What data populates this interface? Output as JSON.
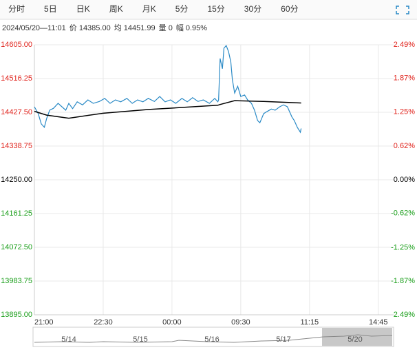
{
  "tabs": [
    "分时",
    "5日",
    "日K",
    "周K",
    "月K",
    "5分",
    "15分",
    "30分",
    "60分"
  ],
  "info": [
    "2024/05/20—11:01",
    "价 14385.00",
    "均 14451.99",
    "量 0",
    "幅 0.95%"
  ],
  "chart_data": {
    "type": "line",
    "x": [
      0,
      5,
      9,
      13,
      16,
      20,
      25,
      31,
      36,
      41,
      45,
      50,
      56,
      63,
      70,
      77,
      85,
      92,
      99,
      106,
      113,
      121,
      128,
      135,
      142,
      149,
      157,
      164,
      171,
      178,
      185,
      193,
      200,
      207,
      214,
      221,
      229,
      236,
      240,
      241,
      243,
      246,
      248,
      251,
      254,
      257,
      259,
      262,
      266,
      270,
      275,
      279,
      284,
      288,
      292,
      295,
      300,
      304,
      310,
      315,
      321,
      326,
      331,
      337,
      340,
      344,
      348,
      349
    ],
    "series": [
      {
        "color": "#2a8ac6",
        "values": [
          14442,
          14424,
          14397,
          14388,
          14411,
          14433,
          14438,
          14451,
          14442,
          14433,
          14451,
          14437,
          14455,
          14447,
          14460,
          14451,
          14456,
          14464,
          14451,
          14460,
          14455,
          14464,
          14451,
          14460,
          14455,
          14464,
          14456,
          14469,
          14455,
          14460,
          14451,
          14464,
          14455,
          14466,
          14456,
          14460,
          14451,
          14464,
          14455,
          14460,
          14569,
          14542,
          14596,
          14603,
          14587,
          14560,
          14514,
          14478,
          14496,
          14469,
          14473,
          14460,
          14451,
          14433,
          14406,
          14400,
          14424,
          14429,
          14436,
          14433,
          14442,
          14447,
          14442,
          14415,
          14406,
          14388,
          14375,
          14385
        ]
      },
      {
        "color": "#000000",
        "x": [
          0,
          16,
          45,
          90,
          150,
          200,
          240,
          243,
          262,
          300,
          349
        ],
        "values": [
          14430,
          14420,
          14412,
          14425,
          14435,
          14441,
          14446,
          14448,
          14458,
          14456,
          14452
        ]
      }
    ],
    "xlim": [
      0,
      470
    ],
    "xticks": [
      {
        "value": 0,
        "label": "21:00"
      },
      {
        "value": 90,
        "label": "22:30"
      },
      {
        "value": 180,
        "label": "00:00"
      },
      {
        "value": 270,
        "label": "09:30"
      },
      {
        "value": 360,
        "label": "11:15"
      },
      {
        "value": 450,
        "label": "14:45"
      }
    ],
    "ylim": [
      13895,
      14605
    ],
    "yticks": [
      {
        "value": 14605,
        "label": "14605.00"
      },
      {
        "value": 14516.25,
        "label": "14516.25"
      },
      {
        "value": 14427.5,
        "label": "14427.50"
      },
      {
        "value": 14338.75,
        "label": "14338.75"
      },
      {
        "value": 14250,
        "label": "14250.00"
      },
      {
        "value": 14161.25,
        "label": "14161.25"
      },
      {
        "value": 14072.5,
        "label": "14072.50"
      },
      {
        "value": 13983.75,
        "label": "13983.75"
      },
      {
        "value": 13895,
        "label": "13895.00"
      }
    ],
    "y2lim": [
      -2.49,
      2.49
    ],
    "y2ticks": [
      {
        "value": 2.49,
        "label": "2.49%"
      },
      {
        "value": 1.87,
        "label": "1.87%"
      },
      {
        "value": 1.25,
        "label": "1.25%"
      },
      {
        "value": 0.62,
        "label": "0.62%"
      },
      {
        "value": 0,
        "label": "0.00%"
      },
      {
        "value": -0.62,
        "label": "-0.62%"
      },
      {
        "value": -1.25,
        "label": "-1.25%"
      },
      {
        "value": -1.87,
        "label": "-1.87%"
      },
      {
        "value": -2.49,
        "label": "-2.49%"
      }
    ],
    "grid": true,
    "up_color": "#e0231c",
    "down_color": "#1a9e1a",
    "flat_color": "#000000",
    "navigator": [
      "5/14",
      "5/15",
      "5/16",
      "5/17",
      "5/20"
    ]
  }
}
